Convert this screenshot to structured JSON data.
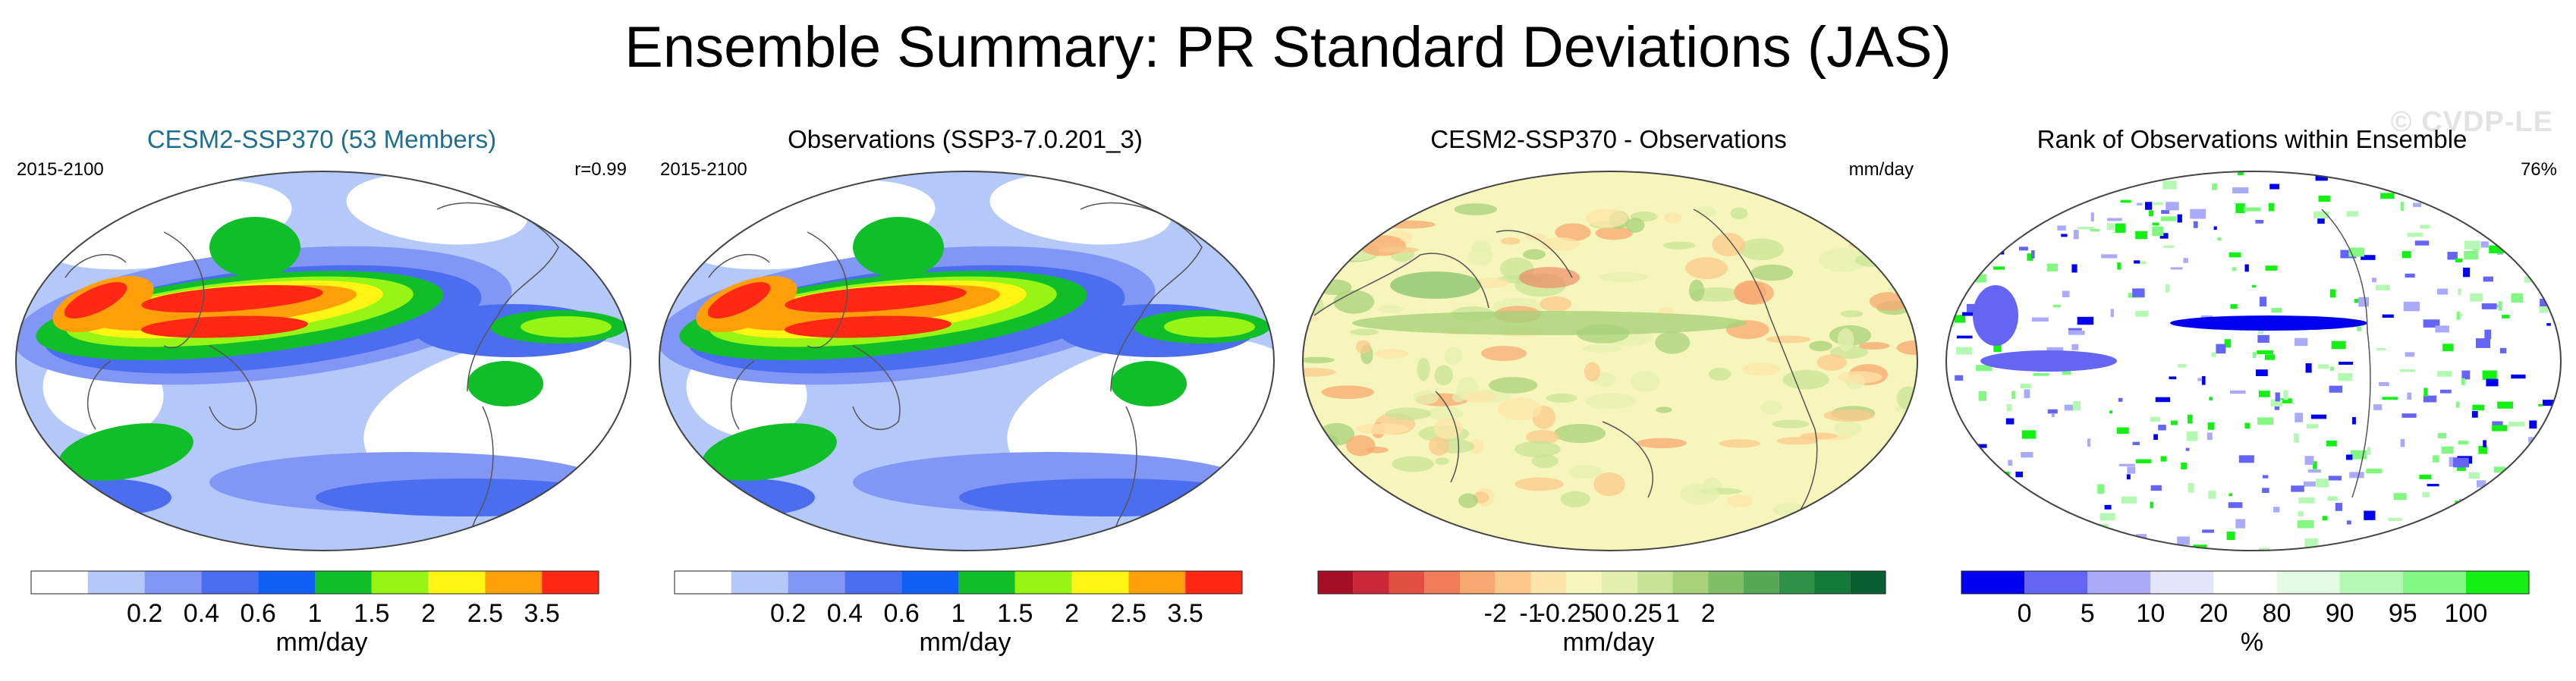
{
  "title": "Ensemble Summary: PR Standard Deviations (JAS)",
  "watermark": "© CVDP-LE",
  "panels": [
    {
      "title": "CESM2-SSP370 (53 Members)",
      "title_color": "#1f6e8c",
      "left_label": "2015-2100",
      "right_label": "r=0.99",
      "map_style": "precip",
      "colorbar": {
        "colors": [
          "#ffffff",
          "#b4c8fa",
          "#8296f5",
          "#4b6ef0",
          "#0f5ff5",
          "#0fbe28",
          "#96f514",
          "#fff514",
          "#ffa00a",
          "#ff2814"
        ],
        "labels": [
          "0.2",
          "0.4",
          "0.6",
          "1",
          "1.5",
          "2",
          "2.5",
          "3.5"
        ],
        "units": "mm/day"
      }
    },
    {
      "title": "Observations (SSP3-7.0.201_3)",
      "title_color": "#000000",
      "left_label": "2015-2100",
      "right_label": "",
      "map_style": "precip",
      "colorbar": {
        "colors": [
          "#ffffff",
          "#b4c8fa",
          "#8296f5",
          "#4b6ef0",
          "#0f5ff5",
          "#0fbe28",
          "#96f514",
          "#fff514",
          "#ffa00a",
          "#ff2814"
        ],
        "labels": [
          "0.2",
          "0.4",
          "0.6",
          "1",
          "1.5",
          "2",
          "2.5",
          "3.5"
        ],
        "units": "mm/day"
      }
    },
    {
      "title": "CESM2-SSP370 - Observations",
      "title_color": "#000000",
      "left_label": "",
      "right_label": "mm/day",
      "map_style": "diff",
      "colorbar": {
        "colors": [
          "#a50f26",
          "#c8283a",
          "#e05040",
          "#f07c5a",
          "#f8a870",
          "#fcc88c",
          "#fde4a8",
          "#f6f5bc",
          "#e4f0b0",
          "#c8e496",
          "#a8d27a",
          "#7fbf66",
          "#55a854",
          "#2e9148",
          "#137a3a",
          "#075e30"
        ],
        "labels": [
          "-2",
          "-1",
          "-0.25",
          "0",
          "0.25",
          "1",
          "2"
        ],
        "units": "mm/day"
      }
    },
    {
      "title": "Rank of Observations within Ensemble",
      "title_color": "#000000",
      "left_label": "",
      "right_label": "76%",
      "map_style": "rank",
      "colorbar": {
        "colors": [
          "#0000f0",
          "#6464f5",
          "#aaaaf8",
          "#e4e4fc",
          "#ffffff",
          "#e4fce4",
          "#b4f8b4",
          "#82f882",
          "#14f014"
        ],
        "labels": [
          "0",
          "5",
          "10",
          "20",
          "80",
          "90",
          "95",
          "100"
        ],
        "units": "%"
      }
    }
  ]
}
